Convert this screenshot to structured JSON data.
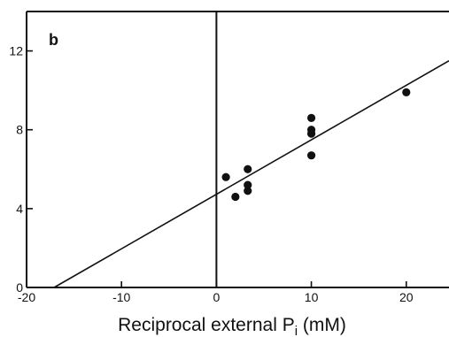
{
  "chart_data": {
    "type": "scatter",
    "panel_label": "b",
    "xlabel": "Reciprocal external P",
    "xlabel_subscript": "i",
    "xlabel_unit": " (mM)",
    "xlim": [
      -20,
      24.5
    ],
    "ylim": [
      0,
      14
    ],
    "x_ticks": [
      -20,
      -10,
      0,
      10,
      20
    ],
    "y_ticks": [
      0,
      4,
      8,
      12
    ],
    "x_tick_labels": [
      "-20",
      "-10",
      "0",
      "10",
      "20"
    ],
    "y_tick_labels": [
      "0",
      "4",
      "8",
      "12"
    ],
    "grid": false,
    "legend": "none",
    "vertical_line_at_x": 0,
    "points": [
      {
        "x": 1.0,
        "y": 5.6
      },
      {
        "x": 2.0,
        "y": 4.6
      },
      {
        "x": 3.3,
        "y": 6.0
      },
      {
        "x": 3.3,
        "y": 5.2
      },
      {
        "x": 3.3,
        "y": 4.9
      },
      {
        "x": 10.0,
        "y": 8.6
      },
      {
        "x": 10.0,
        "y": 8.0
      },
      {
        "x": 10.0,
        "y": 7.8
      },
      {
        "x": 10.0,
        "y": 6.7
      },
      {
        "x": 20.0,
        "y": 9.9
      }
    ],
    "fit_line": {
      "x_start": -17.1,
      "x_end": 24.5,
      "y_start": 0,
      "y_end": 11.5
    },
    "colors": {
      "ink": "#111111",
      "background": "#ffffff"
    }
  }
}
